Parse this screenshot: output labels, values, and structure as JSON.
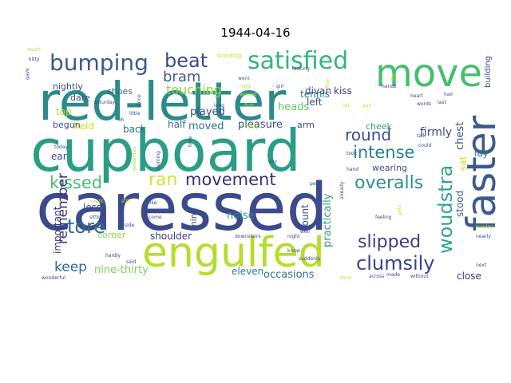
{
  "title": "1944-04-16",
  "words": [
    {
      "text": "caressed",
      "color": "#3b4a8c"
    },
    {
      "text": "cupboard",
      "color": "#2a9e84"
    },
    {
      "text": "red-letter",
      "color": "#2b8b8b"
    },
    {
      "text": "engulfed",
      "color": "#b4dd2c"
    },
    {
      "text": "move",
      "color": "#44bf70"
    },
    {
      "text": "faster",
      "color": "#3a5a8e"
    },
    {
      "text": "satisfied",
      "color": "#34b679"
    },
    {
      "text": "bumping",
      "color": "#3e5a90"
    },
    {
      "text": "beat",
      "color": "#3d4c8a"
    },
    {
      "text": "woudstra",
      "color": "#31a387"
    },
    {
      "text": "clumsily",
      "color": "#39428a"
    },
    {
      "text": "slipped",
      "color": "#423a83"
    },
    {
      "text": "overalls",
      "color": "#2f8f8c"
    },
    {
      "text": "movement",
      "color": "#3a2f73"
    },
    {
      "text": "intense",
      "color": "#2a7f8e"
    },
    {
      "text": "kissed",
      "color": "#44bf70"
    },
    {
      "text": "round",
      "color": "#3a4a8b"
    },
    {
      "text": "tore",
      "color": "#2f6d8e"
    },
    {
      "text": "bram",
      "color": "#3b5e8d"
    },
    {
      "text": "ran",
      "color": "#d4e23a"
    },
    {
      "text": "remember",
      "color": "#3d3775"
    },
    {
      "text": "keep",
      "color": "#2f6a8e"
    },
    {
      "text": "touching",
      "color": "#8dd544"
    },
    {
      "text": "firmly",
      "color": "#3b4b8a"
    },
    {
      "text": "occasions",
      "color": "#2c738e"
    },
    {
      "text": "nine-thirty",
      "color": "#7ad151"
    },
    {
      "text": "practically",
      "color": "#2e9a88"
    },
    {
      "text": "played",
      "color": "#3d4e8a"
    },
    {
      "text": "moved",
      "color": "#2e6f8e"
    },
    {
      "text": "pleasure",
      "color": "#3b4c8b"
    },
    {
      "text": "heads",
      "color": "#5ec962"
    },
    {
      "text": "tennis",
      "color": "#2c7f8e"
    },
    {
      "text": "left",
      "color": "#3e4a89"
    },
    {
      "text": "divan",
      "color": "#3d4d8a"
    },
    {
      "text": "kiss",
      "color": "#3b3a80"
    },
    {
      "text": "chest",
      "color": "#3d4d89"
    },
    {
      "text": "lay",
      "color": "#2f7a8e"
    },
    {
      "text": "sat",
      "color": "#c8e020"
    },
    {
      "text": "stood",
      "color": "#3b5a8c"
    },
    {
      "text": "noise",
      "color": "#2f8c8c"
    },
    {
      "text": "shoulder",
      "color": "#3f3b7e"
    },
    {
      "text": "eleven",
      "color": "#2e7a8e"
    },
    {
      "text": "close",
      "color": "#3e3c80"
    },
    {
      "text": "wearing",
      "color": "#3b4e8a"
    },
    {
      "text": "cheek",
      "color": "#2e9d87"
    },
    {
      "text": "count",
      "color": "#3b4c8b"
    },
    {
      "text": "mine",
      "color": "#3a4c8a"
    },
    {
      "text": "corner",
      "color": "#8fd744"
    },
    {
      "text": "less",
      "color": "#3a4c8a"
    },
    {
      "text": "important",
      "color": "#3d3775"
    },
    {
      "text": "ear",
      "color": "#3c4a8a"
    },
    {
      "text": "held",
      "color": "#c8e020"
    },
    {
      "text": "back",
      "color": "#2f6f8e"
    },
    {
      "text": "half",
      "color": "#2f6f8e"
    },
    {
      "text": "arm",
      "color": "#3a4b8a"
    },
    {
      "text": "begun",
      "color": "#3b4b8a"
    },
    {
      "text": "top",
      "color": "#b5de2b"
    },
    {
      "text": "date",
      "color": "#3a4c8a"
    },
    {
      "text": "nightly",
      "color": "#3b4b8a"
    },
    {
      "text": "shoes",
      "color": "#2f6a8e"
    },
    {
      "text": "building",
      "color": "#3a4a8a"
    },
    {
      "text": "happy",
      "color": "#a5db36"
    },
    {
      "text": "standing",
      "color": "#c8e020"
    },
    {
      "text": "much",
      "color": "#a0da39"
    },
    {
      "text": "kitty",
      "color": "#3a4a8a"
    },
    {
      "text": "gave",
      "color": "#3a4a8a"
    },
    {
      "text": "went",
      "color": "#2e6e8e"
    },
    {
      "text": "right",
      "color": "#b5de2b"
    },
    {
      "text": "around",
      "color": "#c8e020"
    },
    {
      "text": "looking",
      "color": "#3a4a8a"
    },
    {
      "text": "make",
      "color": "#a0da39"
    },
    {
      "text": "saturday",
      "color": "#3a4a8a"
    },
    {
      "text": "since",
      "color": "#3a4a8a"
    },
    {
      "text": "long",
      "color": "#3a4a8a"
    },
    {
      "text": "first",
      "color": "#b5de2b"
    },
    {
      "text": "girl",
      "color": "#3a4a8a"
    },
    {
      "text": "five",
      "color": "#c8e020"
    },
    {
      "text": "bit",
      "color": "#c8e020"
    },
    {
      "text": "put",
      "color": "#c8e020"
    },
    {
      "text": "hands",
      "color": "#3a4a8a"
    },
    {
      "text": "words",
      "color": "#3a4a8a"
    },
    {
      "text": "hair",
      "color": "#3a4a8a"
    },
    {
      "text": "last",
      "color": "#3a4a8a"
    },
    {
      "text": "today",
      "color": "#3a4a8a"
    },
    {
      "text": "oh",
      "color": "#3a4a8a"
    },
    {
      "text": "yesterday",
      "color": "#a0da39"
    },
    {
      "text": "morning",
      "color": "#3a4a8a"
    },
    {
      "text": "time",
      "color": "#3a4a8a"
    },
    {
      "text": "day",
      "color": "#3a4a8a"
    },
    {
      "text": "could",
      "color": "#3a4a8a"
    },
    {
      "text": "talk",
      "color": "#3a4a8a"
    },
    {
      "text": "took",
      "color": "#3a4a8a"
    },
    {
      "text": "hand",
      "color": "#3a4a8a"
    },
    {
      "text": "peter",
      "color": "#3a4a8a"
    },
    {
      "text": "already",
      "color": "#3a4a8a"
    },
    {
      "text": "feeling",
      "color": "#3a4a8a"
    },
    {
      "text": "gets",
      "color": "#c8e020"
    },
    {
      "text": "sunday",
      "color": "#c8e020"
    },
    {
      "text": "nearly",
      "color": "#3a4a8a"
    },
    {
      "text": "next",
      "color": "#3a4a8a"
    },
    {
      "text": "without",
      "color": "#3a4a8a"
    },
    {
      "text": "across",
      "color": "#3a4a8a"
    },
    {
      "text": "made",
      "color": "#3a4a8a"
    },
    {
      "text": "thick",
      "color": "#c8e020"
    },
    {
      "text": "suddenly",
      "color": "#3a4a8a"
    },
    {
      "text": "know",
      "color": "#3a4a8a"
    },
    {
      "text": "well",
      "color": "#3a4a8a"
    },
    {
      "text": "night",
      "color": "#3a4a8a"
    },
    {
      "text": "downstairs",
      "color": "#3a4a8a"
    },
    {
      "text": "come",
      "color": "#3a4a8a"
    },
    {
      "text": "side",
      "color": "#3a4a8a"
    },
    {
      "text": "like",
      "color": "#3a4a8a"
    },
    {
      "text": "sitting",
      "color": "#3a4a8a"
    },
    {
      "text": "hardly",
      "color": "#3a4a8a"
    },
    {
      "text": "said",
      "color": "#3a4a8a"
    },
    {
      "text": "wonderful",
      "color": "#3a4a8a"
    },
    {
      "text": "might",
      "color": "#c8e020"
    },
    {
      "text": "still",
      "color": "#c8e020"
    },
    {
      "text": "little",
      "color": "#3a4a8a"
    },
    {
      "text": "heart",
      "color": "#3a4a8a"
    },
    {
      "text": "for",
      "color": "#c8e020"
    }
  ]
}
